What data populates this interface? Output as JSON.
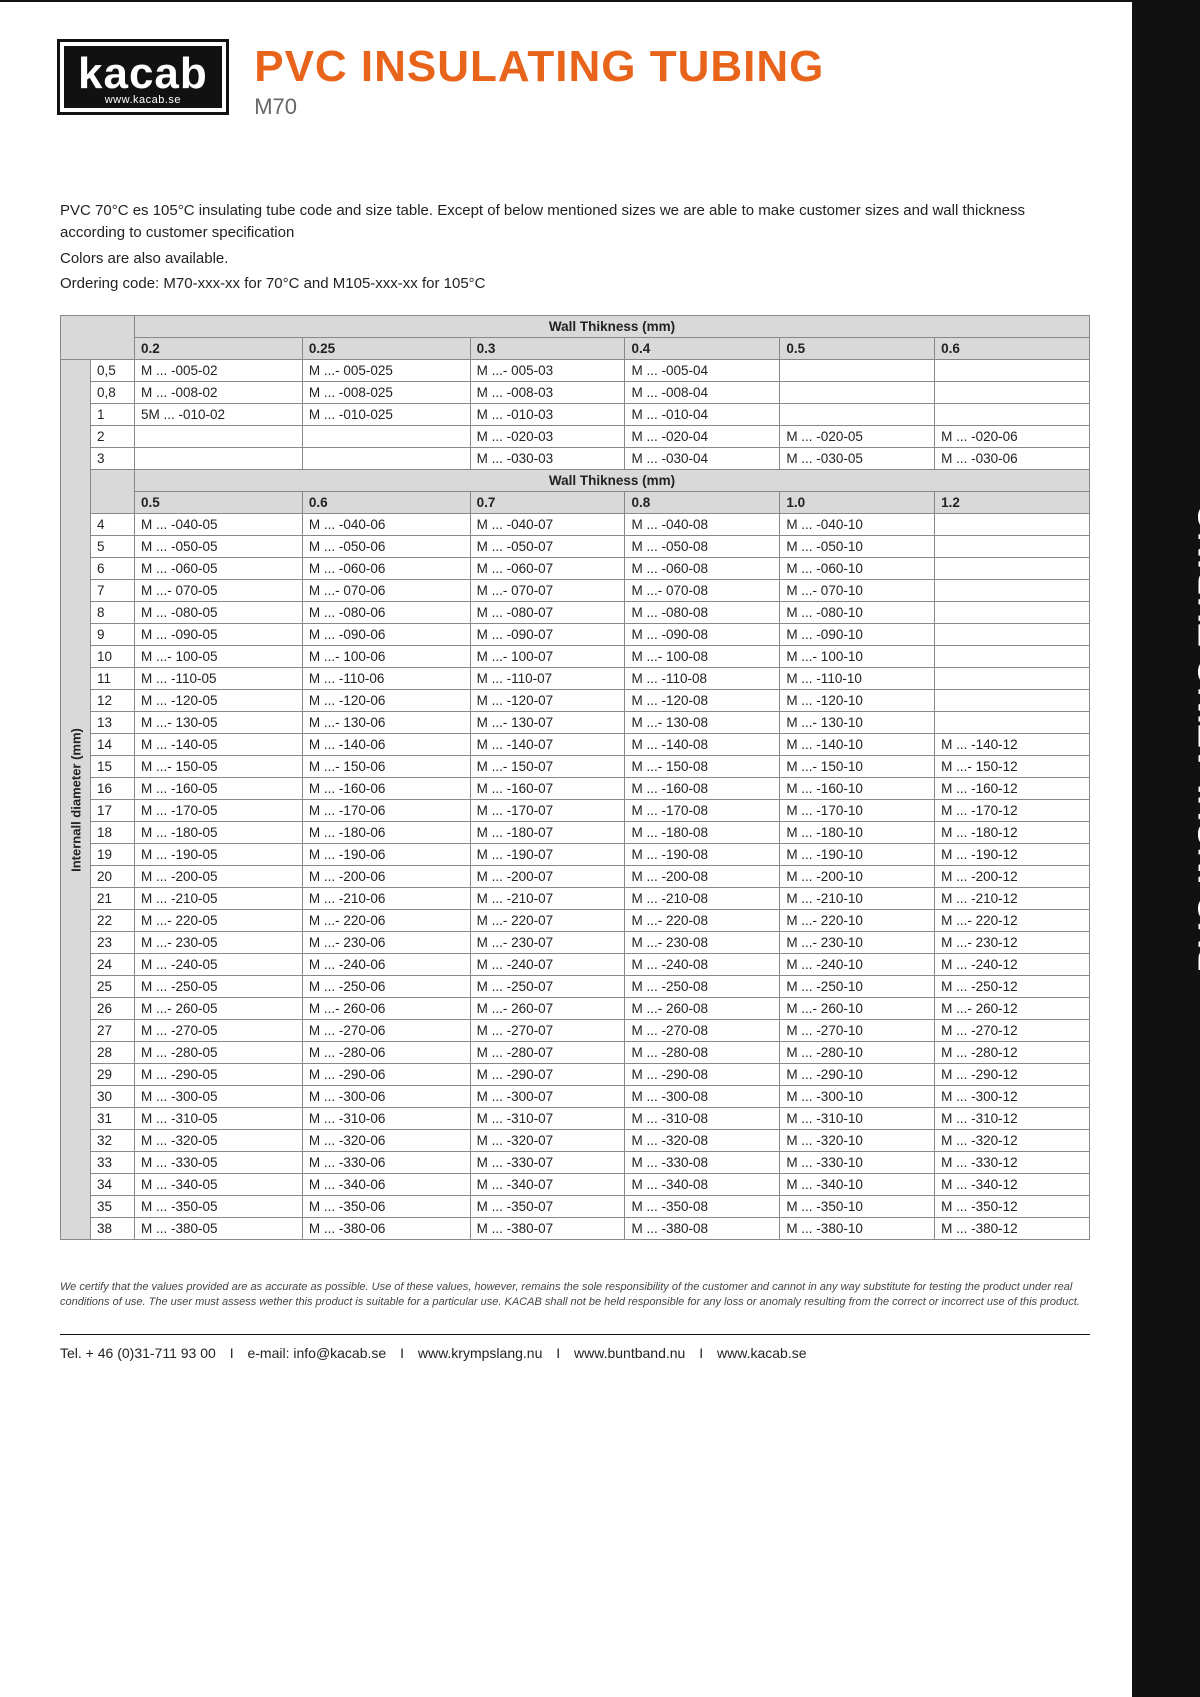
{
  "logo": {
    "main": "kacab",
    "sub": "www.kacab.se"
  },
  "title": "PVC INSULATING TUBING",
  "subtitle": "M70",
  "side_title": "PVC INSULATING TUBING",
  "intro": {
    "p1": "PVC 70°C es 105°C insulating tube code and size table. Except of below mentioned sizes we are able to make customer sizes and wall thickness according to customer specification",
    "p2": "Colors are also available.",
    "p3": "Ordering code: M70-xxx-xx for 70°C and M105-xxx-xx for 105°C"
  },
  "table1": {
    "header_title": "Wall Thikness (mm)",
    "vert_label": "Internall diameter (mm)",
    "cols": [
      "0.2",
      "0.25",
      "0.3",
      "0.4",
      "0.5",
      "0.6"
    ],
    "rows": [
      {
        "d": "0,5",
        "c": [
          "M ... -005-02",
          "M ...- 005-025",
          "M ...- 005-03",
          "M ... -005-04",
          "",
          ""
        ]
      },
      {
        "d": "0,8",
        "c": [
          "M ... -008-02",
          "M ... -008-025",
          "M ... -008-03",
          "M ... -008-04",
          "",
          ""
        ]
      },
      {
        "d": "1",
        "c": [
          "5M ... -010-02",
          "M ... -010-025",
          "M ... -010-03",
          "M ... -010-04",
          "",
          ""
        ]
      },
      {
        "d": "2",
        "c": [
          "",
          "",
          "M ... -020-03",
          "M ... -020-04",
          "M ... -020-05",
          "M ... -020-06"
        ]
      },
      {
        "d": "3",
        "c": [
          "",
          "",
          "M ... -030-03",
          "M ... -030-04",
          "M ... -030-05",
          "M ... -030-06"
        ]
      }
    ]
  },
  "table2": {
    "header_title": "Wall Thikness (mm)",
    "cols": [
      "0.5",
      "0.6",
      "0.7",
      "0.8",
      "1.0",
      "1.2"
    ],
    "rows": [
      {
        "d": "4",
        "c": [
          "M ... -040-05",
          "M ... -040-06",
          "M ... -040-07",
          "M ... -040-08",
          "M ... -040-10",
          ""
        ]
      },
      {
        "d": "5",
        "c": [
          "M ... -050-05",
          "M ... -050-06",
          "M ... -050-07",
          "M ... -050-08",
          "M ... -050-10",
          ""
        ]
      },
      {
        "d": "6",
        "c": [
          "M ... -060-05",
          "M ... -060-06",
          "M ... -060-07",
          "M ... -060-08",
          "M ... -060-10",
          ""
        ]
      },
      {
        "d": "7",
        "c": [
          "M ...- 070-05",
          "M ...- 070-06",
          "M ...- 070-07",
          "M ...- 070-08",
          "M ...- 070-10",
          ""
        ]
      },
      {
        "d": "8",
        "c": [
          "M ... -080-05",
          "M ... -080-06",
          "M ... -080-07",
          "M ... -080-08",
          "M ... -080-10",
          ""
        ]
      },
      {
        "d": "9",
        "c": [
          "M ... -090-05",
          "M ... -090-06",
          "M ... -090-07",
          "M ... -090-08",
          "M ... -090-10",
          ""
        ]
      },
      {
        "d": "10",
        "c": [
          "M ...- 100-05",
          "M ...- 100-06",
          "M ...- 100-07",
          "M ...- 100-08",
          "M ...- 100-10",
          ""
        ]
      },
      {
        "d": "11",
        "c": [
          "M ... -110-05",
          "M ... -110-06",
          "M ... -110-07",
          "M ... -110-08",
          "M ... -110-10",
          ""
        ]
      },
      {
        "d": "12",
        "c": [
          "M ... -120-05",
          "M ... -120-06",
          "M ... -120-07",
          "M ... -120-08",
          "M ... -120-10",
          ""
        ]
      },
      {
        "d": "13",
        "c": [
          "M ...- 130-05",
          "M ...- 130-06",
          "M ...- 130-07",
          "M ...- 130-08",
          "M ...- 130-10",
          ""
        ]
      },
      {
        "d": "14",
        "c": [
          "M ... -140-05",
          "M ... -140-06",
          "M ... -140-07",
          "M ... -140-08",
          "M ... -140-10",
          "M ... -140-12"
        ]
      },
      {
        "d": "15",
        "c": [
          "M ...- 150-05",
          "M ...- 150-06",
          "M ...- 150-07",
          "M ...- 150-08",
          "M ...- 150-10",
          "M ...- 150-12"
        ]
      },
      {
        "d": "16",
        "c": [
          "M ... -160-05",
          "M ... -160-06",
          "M ... -160-07",
          "M ... -160-08",
          "M ... -160-10",
          "M ... -160-12"
        ]
      },
      {
        "d": "17",
        "c": [
          "M ... -170-05",
          "M ... -170-06",
          "M ... -170-07",
          "M ... -170-08",
          "M ... -170-10",
          "M ... -170-12"
        ]
      },
      {
        "d": "18",
        "c": [
          "M ... -180-05",
          "M ... -180-06",
          "M ... -180-07",
          "M ... -180-08",
          "M ... -180-10",
          "M ... -180-12"
        ]
      },
      {
        "d": "19",
        "c": [
          "M ... -190-05",
          "M ... -190-06",
          "M ... -190-07",
          "M ... -190-08",
          "M ... -190-10",
          "M ... -190-12"
        ]
      },
      {
        "d": "20",
        "c": [
          "M ... -200-05",
          "M ... -200-06",
          "M ... -200-07",
          "M ... -200-08",
          "M ... -200-10",
          "M ... -200-12"
        ]
      },
      {
        "d": "21",
        "c": [
          "M ... -210-05",
          "M ... -210-06",
          "M ... -210-07",
          "M ... -210-08",
          "M ... -210-10",
          "M ... -210-12"
        ]
      },
      {
        "d": "22",
        "c": [
          "M ...- 220-05",
          "M ...- 220-06",
          "M ...- 220-07",
          "M ...- 220-08",
          "M ...- 220-10",
          "M ...- 220-12"
        ]
      },
      {
        "d": "23",
        "c": [
          "M ...- 230-05",
          "M ...- 230-06",
          "M ...- 230-07",
          "M ...- 230-08",
          "M ...- 230-10",
          "M ...- 230-12"
        ]
      },
      {
        "d": "24",
        "c": [
          "M ... -240-05",
          "M ... -240-06",
          "M ... -240-07",
          "M ... -240-08",
          "M ... -240-10",
          "M ... -240-12"
        ]
      },
      {
        "d": "25",
        "c": [
          "M ... -250-05",
          "M ... -250-06",
          "M ... -250-07",
          "M ... -250-08",
          "M ... -250-10",
          "M ... -250-12"
        ]
      },
      {
        "d": "26",
        "c": [
          "M ...- 260-05",
          "M ...- 260-06",
          "M ...- 260-07",
          "M ...- 260-08",
          "M ...- 260-10",
          "M ...- 260-12"
        ]
      },
      {
        "d": "27",
        "c": [
          "M ... -270-05",
          "M ... -270-06",
          "M ... -270-07",
          "M ... -270-08",
          "M ... -270-10",
          "M ... -270-12"
        ]
      },
      {
        "d": "28",
        "c": [
          "M ... -280-05",
          "M ... -280-06",
          "M ... -280-07",
          "M ... -280-08",
          "M ... -280-10",
          "M ... -280-12"
        ]
      },
      {
        "d": "29",
        "c": [
          "M ... -290-05",
          "M ... -290-06",
          "M ... -290-07",
          "M ... -290-08",
          "M ... -290-10",
          "M ... -290-12"
        ]
      },
      {
        "d": "30",
        "c": [
          "M ... -300-05",
          "M ... -300-06",
          "M ... -300-07",
          "M ... -300-08",
          "M ... -300-10",
          "M ... -300-12"
        ]
      },
      {
        "d": "31",
        "c": [
          "M ... -310-05",
          "M ... -310-06",
          "M ... -310-07",
          "M ... -310-08",
          "M ... -310-10",
          "M ... -310-12"
        ]
      },
      {
        "d": "32",
        "c": [
          "M ... -320-05",
          "M ... -320-06",
          "M ... -320-07",
          "M ... -320-08",
          "M ... -320-10",
          "M ... -320-12"
        ]
      },
      {
        "d": "33",
        "c": [
          "M ... -330-05",
          "M ... -330-06",
          "M ... -330-07",
          "M ... -330-08",
          "M ... -330-10",
          "M ... -330-12"
        ]
      },
      {
        "d": "34",
        "c": [
          "M ... -340-05",
          "M ... -340-06",
          "M ... -340-07",
          "M ... -340-08",
          "M ... -340-10",
          "M ... -340-12"
        ]
      },
      {
        "d": "35",
        "c": [
          "M ... -350-05",
          "M ... -350-06",
          "M ... -350-07",
          "M ... -350-08",
          "M ... -350-10",
          "M ... -350-12"
        ]
      },
      {
        "d": "38",
        "c": [
          "M ... -380-05",
          "M ... -380-06",
          "M ... -380-07",
          "M ... -380-08",
          "M ... -380-10",
          "M ... -380-12"
        ]
      }
    ]
  },
  "disclaimer": "We certify that the values provided are as accurate as possible. Use of these values, however, remains the sole responsibility of the customer and cannot in any way substitute for testing the product under real conditions of use. The user must assess wether this product is suitable for a particular use. KACAB shall not be held responsible for any loss or anomaly resulting from the correct or incorrect use of this product.",
  "footer": {
    "tel": "Tel. + 46 (0)31-711 93 00",
    "email": "e-mail: info@kacab.se",
    "w1": "www.krympslang.nu",
    "w2": "www.buntband.nu",
    "w3": "www.kacab.se"
  },
  "style": {
    "accent_color": "#e8641b",
    "header_bg": "#d9d9d9",
    "border_color": "#888888",
    "bg_color": "#ffffff",
    "sidebar_color": "#111111",
    "title_fontsize": 44,
    "body_fontsize": 15,
    "table_fontsize": 13.5
  }
}
